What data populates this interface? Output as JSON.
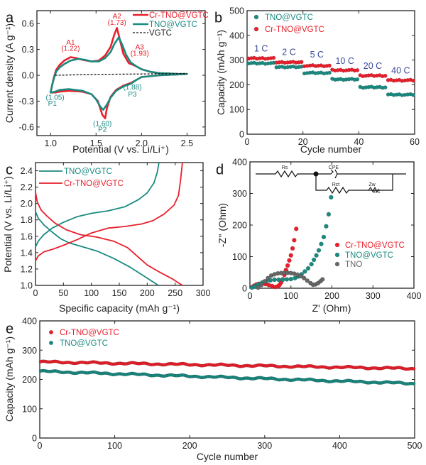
{
  "colors": {
    "red": "#e8202c",
    "teal": "#1a8a80",
    "gray": "#666666",
    "black": "#111111",
    "rate": "#3a4a9a"
  },
  "chart_data": [
    {
      "panel": "a",
      "type": "line",
      "title": "",
      "xlabel": "Potential (V vs. Li/Li⁺)",
      "ylabel": "Current density (A g⁻¹)",
      "xlim": [
        0.85,
        2.7
      ],
      "ylim": [
        -0.7,
        0.75
      ],
      "xticks": [
        1.0,
        1.5,
        2.0,
        2.5
      ],
      "yticks": [
        -0.6,
        -0.3,
        0.0,
        0.3,
        0.6
      ],
      "xtick_labels": [
        "1.0",
        "1.5",
        "2.0",
        "2.5"
      ],
      "ytick_labels": [
        "-0.6",
        "-0.3",
        "0.0",
        "0.3",
        "0.6"
      ],
      "legend": [
        "Cr-TNO@VGTC",
        "TNO@VGTC",
        "VGTC"
      ],
      "legend_position": "top-right",
      "series": [
        {
          "name": "Cr-TNO@VGTC",
          "color": "red",
          "x": [
            1.0,
            1.03,
            1.06,
            1.1,
            1.15,
            1.22,
            1.28,
            1.35,
            1.45,
            1.53,
            1.6,
            1.66,
            1.7,
            1.73,
            1.76,
            1.8,
            1.86,
            1.93,
            2.0,
            2.1,
            2.2,
            2.3,
            2.4,
            2.5,
            2.4,
            2.2,
            2.0,
            1.95,
            1.88,
            1.8,
            1.72,
            1.66,
            1.62,
            1.6,
            1.57,
            1.52,
            1.45,
            1.35,
            1.2,
            1.1,
            1.05,
            1.0
          ],
          "y": [
            -0.2,
            -0.05,
            0.06,
            0.12,
            0.17,
            0.21,
            0.2,
            0.18,
            0.16,
            0.17,
            0.23,
            0.33,
            0.47,
            0.55,
            0.42,
            0.25,
            0.14,
            0.11,
            0.07,
            0.04,
            0.025,
            0.02,
            0.015,
            0.015,
            0.01,
            0.0,
            -0.02,
            -0.05,
            -0.09,
            -0.12,
            -0.17,
            -0.25,
            -0.38,
            -0.5,
            -0.46,
            -0.3,
            -0.22,
            -0.19,
            -0.18,
            -0.19,
            -0.2,
            -0.2
          ]
        },
        {
          "name": "TNO@VGTC",
          "color": "teal",
          "x": [
            1.0,
            1.03,
            1.06,
            1.1,
            1.15,
            1.22,
            1.3,
            1.38,
            1.45,
            1.53,
            1.6,
            1.66,
            1.7,
            1.75,
            1.79,
            1.83,
            1.88,
            1.95,
            2.0,
            2.1,
            2.2,
            2.3,
            2.4,
            2.5,
            2.4,
            2.2,
            2.0,
            1.95,
            1.88,
            1.8,
            1.72,
            1.66,
            1.62,
            1.58,
            1.55,
            1.5,
            1.45,
            1.35,
            1.2,
            1.1,
            1.05,
            1.0
          ],
          "y": [
            -0.2,
            -0.06,
            0.04,
            0.09,
            0.13,
            0.17,
            0.19,
            0.18,
            0.16,
            0.16,
            0.2,
            0.27,
            0.36,
            0.44,
            0.35,
            0.24,
            0.15,
            0.1,
            0.07,
            0.04,
            0.025,
            0.02,
            0.015,
            0.015,
            0.01,
            0.0,
            -0.02,
            -0.05,
            -0.1,
            -0.13,
            -0.18,
            -0.26,
            -0.34,
            -0.4,
            -0.37,
            -0.28,
            -0.22,
            -0.18,
            -0.16,
            -0.17,
            -0.19,
            -0.2
          ]
        },
        {
          "name": "VGTC",
          "color": "black",
          "dashed": true,
          "x": [
            1.05,
            1.5,
            2.0,
            2.5
          ],
          "y": [
            0.0,
            0.01,
            0.015,
            0.02
          ]
        }
      ],
      "annotations": [
        {
          "text": "A1",
          "x": 1.22,
          "y": 0.355,
          "color": "red"
        },
        {
          "text": "(1.22)",
          "x": 1.22,
          "y": 0.285,
          "color": "red"
        },
        {
          "text": "A2",
          "x": 1.73,
          "y": 0.66,
          "color": "red"
        },
        {
          "text": "(1.73)",
          "x": 1.73,
          "y": 0.585,
          "color": "red"
        },
        {
          "text": "A3",
          "x": 1.98,
          "y": 0.3,
          "color": "red"
        },
        {
          "text": "(1.93)",
          "x": 1.98,
          "y": 0.225,
          "color": "red"
        },
        {
          "text": "(1.05)",
          "x": 1.05,
          "y": -0.285,
          "color": "teal"
        },
        {
          "text": "P1",
          "x": 1.02,
          "y": -0.355,
          "color": "teal"
        },
        {
          "text": "(1.60)",
          "x": 1.57,
          "y": -0.59,
          "color": "teal"
        },
        {
          "text": "P2",
          "x": 1.57,
          "y": -0.655,
          "color": "teal"
        },
        {
          "text": "(1.88)",
          "x": 1.9,
          "y": -0.165,
          "color": "teal"
        },
        {
          "text": "P3",
          "x": 1.9,
          "y": -0.245,
          "color": "teal"
        }
      ]
    },
    {
      "panel": "b",
      "type": "scatter",
      "xlabel": "Cycle number",
      "ylabel": "Capacity (mAh g⁻¹)",
      "xlim": [
        0,
        60
      ],
      "ylim": [
        0,
        500
      ],
      "xticks": [
        0,
        20,
        40,
        60
      ],
      "yticks": [
        0,
        100,
        200,
        300,
        400,
        500
      ],
      "xtick_labels": [
        "0",
        "20",
        "40",
        "60"
      ],
      "ytick_labels": [
        "0",
        "100",
        "200",
        "300",
        "400",
        "500"
      ],
      "legend": [
        "TNO@VGTC",
        "Cr-TNO@VGTC"
      ],
      "legend_position": "top-left",
      "rates": [
        {
          "label": "1 C",
          "x": 5,
          "y": 335
        },
        {
          "label": "2 C",
          "x": 15,
          "y": 320
        },
        {
          "label": "5 C",
          "x": 25,
          "y": 310
        },
        {
          "label": "10 C",
          "x": 35,
          "y": 285
        },
        {
          "label": "20 C",
          "x": 45,
          "y": 265
        },
        {
          "label": "40 C",
          "x": 55,
          "y": 245
        }
      ],
      "series": [
        {
          "name": "TNO@VGTC",
          "color": "teal",
          "segment_values": [
            287,
            272,
            248,
            222,
            190,
            160
          ]
        },
        {
          "name": "Cr-TNO@VGTC",
          "color": "red",
          "segment_values": [
            307,
            291,
            277,
            259,
            237,
            218
          ]
        }
      ]
    },
    {
      "panel": "c",
      "type": "line",
      "xlabel": "Specific capacity (mAh g⁻¹)",
      "ylabel": "Potential (V vs. Li/Li⁺)",
      "xlim": [
        0,
        300
      ],
      "ylim": [
        1.0,
        2.5
      ],
      "xticks": [
        0,
        50,
        100,
        150,
        200,
        250,
        300
      ],
      "yticks": [
        1.0,
        1.2,
        1.4,
        1.6,
        1.8,
        2.0,
        2.2,
        2.4
      ],
      "xtick_labels": [
        "0",
        "50",
        "100",
        "150",
        "200",
        "250",
        "300"
      ],
      "ytick_labels": [
        "1.0",
        "1.2",
        "1.4",
        "1.6",
        "1.8",
        "2.0",
        "2.2",
        "2.4"
      ],
      "legend": [
        "TNO@VGTC",
        "Cr-TNO@VGTC"
      ],
      "legend_position": "top-left",
      "series": [
        {
          "name": "TNO@VGTC discharge",
          "color": "teal",
          "x": [
            0,
            5,
            15,
            30,
            45,
            60,
            80,
            110,
            140,
            170,
            195,
            220
          ],
          "y": [
            1.9,
            1.82,
            1.74,
            1.65,
            1.57,
            1.52,
            1.48,
            1.42,
            1.33,
            1.22,
            1.11,
            1.0
          ]
        },
        {
          "name": "TNO@VGTC charge",
          "color": "teal",
          "x": [
            0,
            5,
            15,
            30,
            50,
            75,
            100,
            130,
            160,
            185,
            200,
            212,
            218,
            221
          ],
          "y": [
            1.47,
            1.54,
            1.62,
            1.7,
            1.77,
            1.84,
            1.88,
            1.91,
            1.96,
            2.05,
            2.13,
            2.25,
            2.38,
            2.5
          ]
        },
        {
          "name": "Cr-TNO@VGTC discharge",
          "color": "red",
          "x": [
            0,
            3,
            10,
            20,
            35,
            55,
            80,
            110,
            140,
            165,
            185,
            200,
            220,
            245,
            263
          ],
          "y": [
            2.14,
            2.02,
            1.92,
            1.85,
            1.76,
            1.68,
            1.62,
            1.59,
            1.54,
            1.46,
            1.34,
            1.25,
            1.17,
            1.08,
            1.0
          ]
        },
        {
          "name": "Cr-TNO@VGTC charge",
          "color": "red",
          "x": [
            0,
            5,
            15,
            30,
            50,
            75,
            100,
            130,
            160,
            190,
            210,
            230,
            248,
            256,
            260,
            263
          ],
          "y": [
            1.3,
            1.36,
            1.41,
            1.44,
            1.49,
            1.56,
            1.64,
            1.7,
            1.72,
            1.75,
            1.79,
            1.87,
            1.98,
            2.1,
            2.3,
            2.5
          ]
        }
      ]
    },
    {
      "panel": "d",
      "type": "scatter",
      "xlabel": "Z' (Ohm)",
      "ylabel": "-Z'' (Ohm)",
      "xlim": [
        0,
        400
      ],
      "ylim": [
        0,
        400
      ],
      "xticks": [
        0,
        100,
        200,
        300,
        400
      ],
      "yticks": [
        0,
        100,
        200,
        300,
        400
      ],
      "xtick_labels": [
        "0",
        "100",
        "200",
        "300",
        "400"
      ],
      "ytick_labels": [
        "0",
        "100",
        "200",
        "300",
        "400"
      ],
      "legend": [
        "Cr-TNO@VGTC",
        "TNO@VGTC",
        "TNO"
      ],
      "legend_position": "center-right",
      "inset_circuit": {
        "labels": [
          "Rs",
          "CPE",
          "Rct",
          "Zw",
          "Ws"
        ]
      },
      "series": [
        {
          "name": "Cr-TNO@VGTC",
          "color": "red",
          "x": [
            5,
            10,
            16,
            22,
            30,
            38,
            46,
            54,
            62,
            68,
            72,
            76,
            80,
            84,
            88,
            92,
            96,
            100,
            104,
            108,
            113
          ],
          "y": [
            3,
            8,
            12,
            14,
            15,
            13,
            10,
            7,
            4,
            6,
            10,
            18,
            28,
            42,
            58,
            72,
            88,
            104,
            126,
            152,
            188
          ]
        },
        {
          "name": "TNO@VGTC",
          "color": "teal",
          "x": [
            5,
            12,
            20,
            30,
            40,
            50,
            60,
            70,
            80,
            90,
            100,
            110,
            118,
            126,
            134,
            142,
            150,
            156,
            162,
            168,
            174,
            180,
            186,
            192,
            198
          ],
          "y": [
            2,
            6,
            12,
            18,
            22,
            25,
            27,
            27,
            27,
            28,
            29,
            32,
            37,
            44,
            53,
            63,
            76,
            90,
            104,
            120,
            140,
            162,
            196,
            234,
            288
          ]
        },
        {
          "name": "TNO",
          "color": "gray",
          "x": [
            20,
            28,
            36,
            44,
            52,
            60,
            68,
            76,
            84,
            92,
            100,
            108,
            116,
            124,
            132,
            140,
            148,
            154,
            160,
            166,
            172,
            177
          ],
          "y": [
            2,
            10,
            22,
            32,
            40,
            44,
            47,
            48,
            49,
            49,
            48,
            46,
            43,
            38,
            32,
            24,
            16,
            11,
            12,
            16,
            22,
            28
          ]
        }
      ]
    },
    {
      "panel": "e",
      "type": "scatter",
      "xlabel": "Cycle number",
      "ylabel": "Capacity (mAh g⁻¹)",
      "xlim": [
        0,
        500
      ],
      "ylim": [
        0,
        400
      ],
      "xticks": [
        0,
        100,
        200,
        300,
        400,
        500
      ],
      "yticks": [
        0,
        100,
        200,
        300,
        400
      ],
      "xtick_labels": [
        "0",
        "100",
        "200",
        "300",
        "400",
        "500"
      ],
      "ytick_labels": [
        "0",
        "100",
        "200",
        "300",
        "400"
      ],
      "legend": [
        "Cr-TNO@VGTC",
        "TNO@VGTC"
      ],
      "legend_position": "top-left",
      "series": [
        {
          "name": "Cr-TNO@VGTC",
          "color": "red",
          "start": 260,
          "end": 237
        },
        {
          "name": "TNO@VGTC",
          "color": "teal",
          "start": 228,
          "end": 186
        }
      ]
    }
  ],
  "panel_labels": [
    "a",
    "b",
    "c",
    "d",
    "e"
  ]
}
